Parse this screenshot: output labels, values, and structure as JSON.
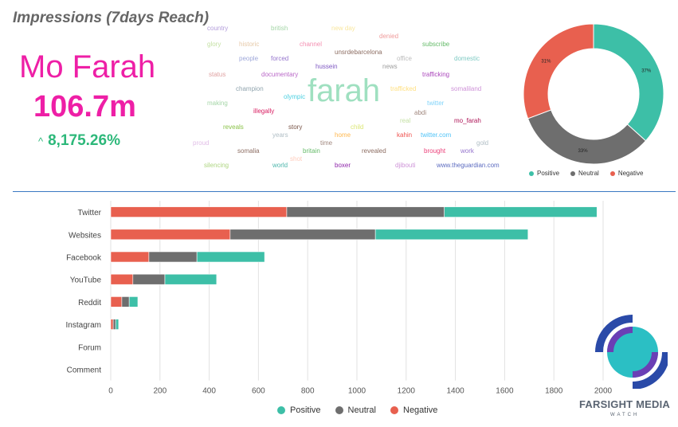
{
  "title": "Impressions (7days Reach)",
  "subject": "Mo Farah",
  "metric": "106.7m",
  "change": {
    "arrow": "^",
    "value": "8,175.26%"
  },
  "colors": {
    "positive": "#3dbfa7",
    "neutral": "#6e6e6e",
    "negative": "#e8604f",
    "accent": "#ee1fa6",
    "change": "#2db87a",
    "divider": "#3a78c2"
  },
  "word_cloud": [
    {
      "text": "country",
      "color": "#b39ddb"
    },
    {
      "text": "british",
      "color": "#a5d6a7"
    },
    {
      "text": "new day",
      "color": "#f9e79f"
    },
    {
      "text": "glory",
      "color": "#c5e1a5"
    },
    {
      "text": "historic",
      "color": "#e6c9a8"
    },
    {
      "text": "channel",
      "color": "#f48fb1"
    },
    {
      "text": "denied",
      "color": "#ef9a9a"
    },
    {
      "text": "subscribe",
      "color": "#66bb6a"
    },
    {
      "text": "unsrdebarcelona",
      "color": "#8d6e63"
    },
    {
      "text": "people",
      "color": "#9fa8da"
    },
    {
      "text": "forced",
      "color": "#9575cd"
    },
    {
      "text": "office",
      "color": "#bdbdbd"
    },
    {
      "text": "domestic",
      "color": "#80cbc4"
    },
    {
      "text": "hussein",
      "color": "#7e57c2"
    },
    {
      "text": "news",
      "color": "#9e9e9e"
    },
    {
      "text": "status",
      "color": "#e0a3a3"
    },
    {
      "text": "documentary",
      "color": "#ba68c8"
    },
    {
      "text": "trafficking",
      "color": "#ab47bc"
    },
    {
      "text": "farah",
      "color": "#9fe0c0"
    },
    {
      "text": "champion",
      "color": "#90a4ae"
    },
    {
      "text": "olympic",
      "color": "#4dd0e1"
    },
    {
      "text": "trafficked",
      "color": "#ffe082"
    },
    {
      "text": "somaliland",
      "color": "#ce93d8"
    },
    {
      "text": "making",
      "color": "#a5d6a7"
    },
    {
      "text": "twitter",
      "color": "#81d4fa"
    },
    {
      "text": "illegally",
      "color": "#d81b60"
    },
    {
      "text": "abdi",
      "color": "#a1887f"
    },
    {
      "text": "real",
      "color": "#c5e1a5"
    },
    {
      "text": "mo_farah",
      "color": "#ad1457"
    },
    {
      "text": "reveals",
      "color": "#8bc34a"
    },
    {
      "text": "story",
      "color": "#795548"
    },
    {
      "text": "child",
      "color": "#dce775"
    },
    {
      "text": "years",
      "color": "#b0bec5"
    },
    {
      "text": "home",
      "color": "#ffb74d"
    },
    {
      "text": "kahin",
      "color": "#ef5350"
    },
    {
      "text": "twitter.com",
      "color": "#4fc3f7"
    },
    {
      "text": "proud",
      "color": "#e1bee7"
    },
    {
      "text": "time",
      "color": "#a1887f"
    },
    {
      "text": "gold",
      "color": "#b0bec5"
    },
    {
      "text": "somalia",
      "color": "#8d6e63"
    },
    {
      "text": "britain",
      "color": "#66bb6a"
    },
    {
      "text": "revealed",
      "color": "#8d6e63"
    },
    {
      "text": "brought",
      "color": "#ec407a"
    },
    {
      "text": "work",
      "color": "#9575cd"
    },
    {
      "text": "shot",
      "color": "#ffccbc"
    },
    {
      "text": "silencing",
      "color": "#aed581"
    },
    {
      "text": "world",
      "color": "#4db6ac"
    },
    {
      "text": "boxer",
      "color": "#8e24aa"
    },
    {
      "text": "djibouti",
      "color": "#ce93d8"
    },
    {
      "text": "www.theguardian.com",
      "color": "#5c6bc0"
    }
  ],
  "sentiment_donut": {
    "segments": [
      {
        "name": "Positive",
        "label": "37%",
        "value": 37
      },
      {
        "name": "Neutral",
        "label": "33%",
        "value": 33
      },
      {
        "name": "Negative",
        "label": "31%",
        "value": 31
      }
    ]
  },
  "chart_data": {
    "type": "bar",
    "orientation": "horizontal",
    "stacked": true,
    "categories": [
      "Twitter",
      "Websites",
      "Facebook",
      "YouTube",
      "Reddit",
      "Instagram",
      "Forum",
      "Comment"
    ],
    "series": [
      {
        "name": "Negative",
        "values": [
          715,
          485,
          155,
          90,
          45,
          10,
          0,
          0
        ]
      },
      {
        "name": "Neutral",
        "values": [
          640,
          590,
          195,
          130,
          30,
          10,
          0,
          0
        ]
      },
      {
        "name": "Positive",
        "values": [
          620,
          620,
          275,
          210,
          35,
          12,
          0,
          0
        ]
      }
    ],
    "xlim": [
      0,
      2000
    ],
    "xticks": [
      "0",
      "200",
      "400",
      "600",
      "800",
      "1000",
      "1200",
      "1400",
      "1600",
      "1800",
      "2000"
    ],
    "grid": true,
    "legend": [
      "Positive",
      "Neutral",
      "Negative"
    ]
  },
  "logo": {
    "name": "FARSIGHT MEDIA",
    "sub": "WATCH"
  }
}
